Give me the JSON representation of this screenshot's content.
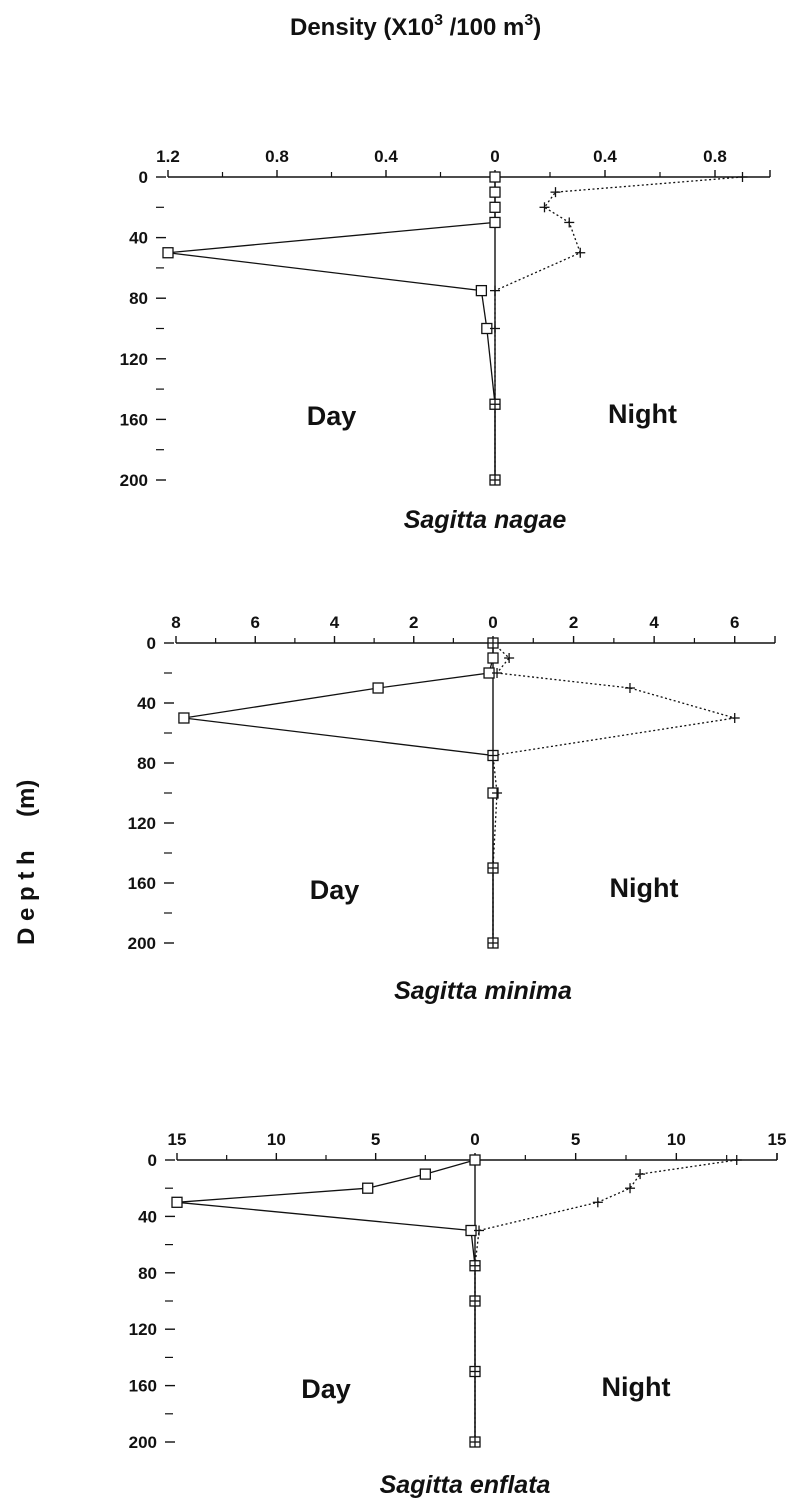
{
  "figure": {
    "title_main": "Density (X10",
    "title_exp": "3",
    "title_mid": " /100 m",
    "title_exp2": "3",
    "title_end": ")",
    "ylabel": "D e p t h     (m)"
  },
  "chart_data": [
    {
      "type": "line",
      "species": "Sagitta nagae",
      "day_label": "Day",
      "night_label": "Night",
      "day_max": 1.2,
      "night_max": 1.0,
      "ylim": [
        0,
        200
      ],
      "y_tick_values": [
        0,
        40,
        80,
        120,
        160,
        200
      ],
      "day_ticks": [
        "1.2",
        "0.8",
        "0.4",
        "0"
      ],
      "day_tick_values": [
        1.2,
        0.8,
        0.4,
        0
      ],
      "night_ticks": [
        "0.4",
        "0.8"
      ],
      "night_tick_values": [
        0.4,
        0.8
      ],
      "y_ticks": [
        "0",
        "40",
        "80",
        "120",
        "160",
        "200"
      ],
      "series": [
        {
          "name": "Day",
          "points": [
            [
              0,
              0
            ],
            [
              0,
              10
            ],
            [
              0,
              20
            ],
            [
              0,
              30
            ],
            [
              1.2,
              50
            ],
            [
              0.05,
              75
            ],
            [
              0.03,
              100
            ],
            [
              0.0,
              150
            ],
            [
              0.0,
              200
            ]
          ]
        },
        {
          "name": "Night",
          "points": [
            [
              0.9,
              0
            ],
            [
              0.22,
              10
            ],
            [
              0.18,
              20
            ],
            [
              0.27,
              30
            ],
            [
              0.31,
              50
            ],
            [
              0.0,
              75
            ],
            [
              0.0,
              100
            ],
            [
              0.0,
              150
            ],
            [
              0.0,
              200
            ]
          ]
        }
      ]
    },
    {
      "type": "line",
      "species": "Sagitta minima",
      "day_label": "Day",
      "night_label": "Night",
      "day_max": 8,
      "night_max": 7,
      "ylim": [
        0,
        200
      ],
      "y_tick_values": [
        0,
        40,
        80,
        120,
        160,
        200
      ],
      "day_ticks": [
        "8",
        "6",
        "4",
        "2",
        "0"
      ],
      "day_tick_values": [
        8,
        6,
        4,
        2,
        0
      ],
      "night_ticks": [
        "2",
        "4",
        "6"
      ],
      "night_tick_values": [
        2,
        4,
        6
      ],
      "y_ticks": [
        "0",
        "40",
        "80",
        "120",
        "160",
        "200"
      ],
      "series": [
        {
          "name": "Day",
          "points": [
            [
              0,
              0
            ],
            [
              0,
              10
            ],
            [
              0.1,
              20
            ],
            [
              2.9,
              30
            ],
            [
              7.8,
              50
            ],
            [
              0,
              75
            ],
            [
              0,
              100
            ],
            [
              0,
              150
            ],
            [
              0,
              200
            ]
          ]
        },
        {
          "name": "Night",
          "points": [
            [
              0,
              0
            ],
            [
              0.4,
              10
            ],
            [
              0.1,
              20
            ],
            [
              3.4,
              30
            ],
            [
              6.0,
              50
            ],
            [
              0.0,
              75
            ],
            [
              0.1,
              100
            ],
            [
              0.0,
              150
            ],
            [
              0.0,
              200
            ]
          ]
        }
      ]
    },
    {
      "type": "line",
      "species": "Sagitta enflata",
      "day_label": "Day",
      "night_label": "Night",
      "day_max": 15,
      "night_max": 15,
      "ylim": [
        0,
        200
      ],
      "y_tick_values": [
        0,
        40,
        80,
        120,
        160,
        200
      ],
      "day_ticks": [
        "15",
        "10",
        "5",
        "0"
      ],
      "day_tick_values": [
        15,
        10,
        5,
        0
      ],
      "night_ticks": [
        "5",
        "10",
        "15"
      ],
      "night_tick_values": [
        5,
        10,
        15
      ],
      "y_ticks": [
        "0",
        "40",
        "80",
        "120",
        "160",
        "200"
      ],
      "series": [
        {
          "name": "Day",
          "points": [
            [
              0,
              0
            ],
            [
              2.5,
              10
            ],
            [
              5.4,
              20
            ],
            [
              15,
              30
            ],
            [
              0.2,
              50
            ],
            [
              0,
              75
            ],
            [
              0,
              100
            ],
            [
              0,
              150
            ],
            [
              0,
              200
            ]
          ]
        },
        {
          "name": "Night",
          "points": [
            [
              13,
              0
            ],
            [
              8.2,
              10
            ],
            [
              7.7,
              20
            ],
            [
              6.1,
              30
            ],
            [
              0.2,
              50
            ],
            [
              0.0,
              75
            ],
            [
              0.0,
              100
            ],
            [
              0.0,
              150
            ],
            [
              0.0,
              200
            ]
          ]
        }
      ]
    }
  ]
}
